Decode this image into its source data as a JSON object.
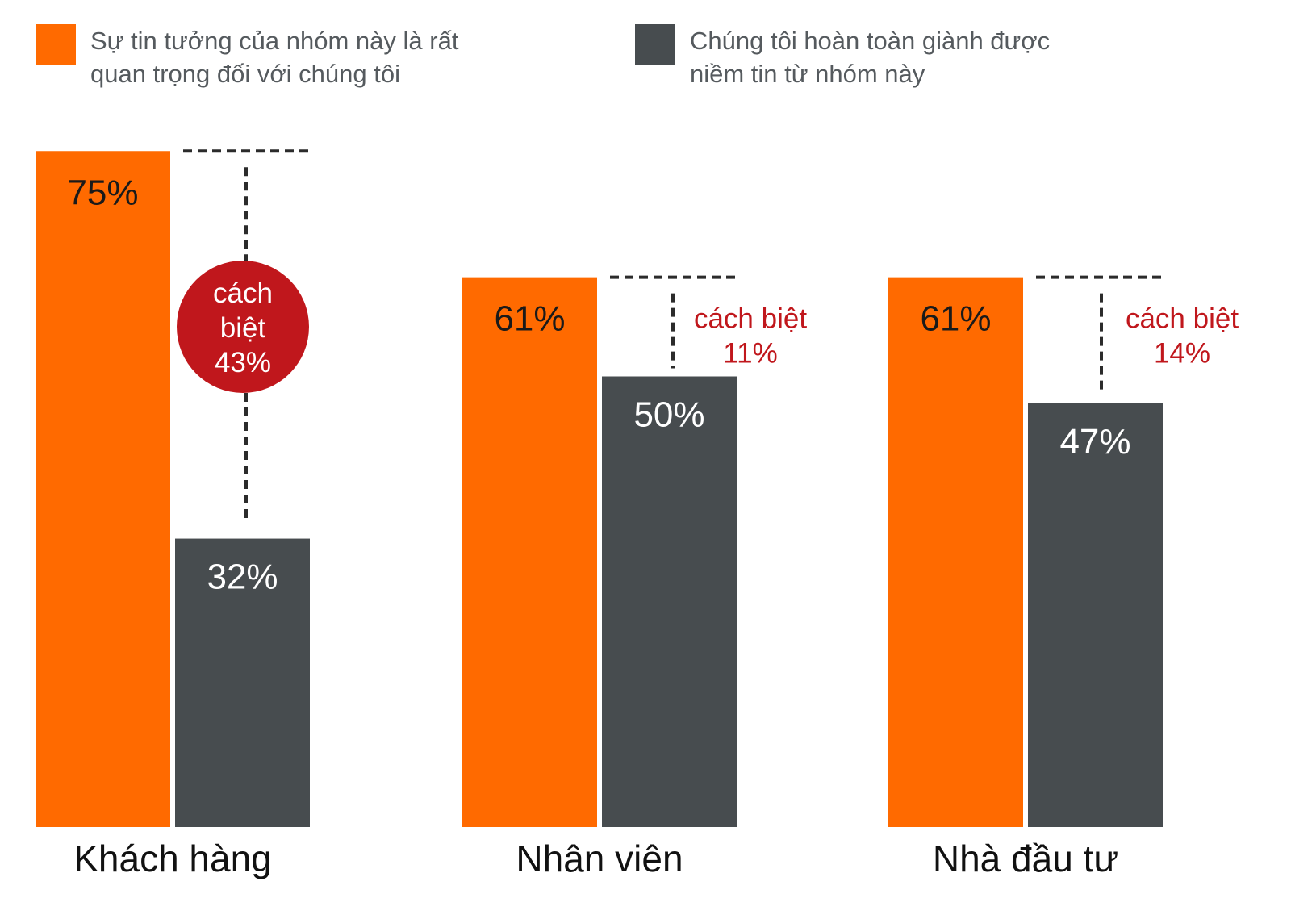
{
  "colors": {
    "important": "#ff6a00",
    "earned": "#474c4f",
    "gap": "#c0171c",
    "dash": "#2b2b2b"
  },
  "legend": [
    {
      "line1": "Sự tin tưởng của nhóm này là rất",
      "line2": "quan trọng đối với chúng tôi"
    },
    {
      "line1": "Chúng tôi hoàn toàn giành được",
      "line2": "niềm tin từ nhóm này"
    }
  ],
  "chart_data": {
    "type": "bar",
    "categories": [
      "Khách hàng",
      "Nhân viên",
      "Nhà đầu tư"
    ],
    "series": [
      {
        "name": "Sự tin tưởng của nhóm này là rất quan trọng đối với chúng tôi",
        "values": [
          75,
          61,
          61
        ],
        "labels": [
          "75%",
          "61%",
          "61%"
        ]
      },
      {
        "name": "Chúng tôi hoàn toàn giành được niềm tin từ nhóm này",
        "values": [
          32,
          50,
          47
        ],
        "labels": [
          "32%",
          "50%",
          "47%"
        ]
      }
    ],
    "gaps": [
      {
        "word1": "cách",
        "word2": "biệt",
        "value": "43%",
        "style": "circle"
      },
      {
        "word1": "cách biệt",
        "value": "11%",
        "style": "text"
      },
      {
        "word1": "cách biệt",
        "value": "14%",
        "style": "text"
      }
    ],
    "ylim": [
      0,
      100
    ]
  }
}
